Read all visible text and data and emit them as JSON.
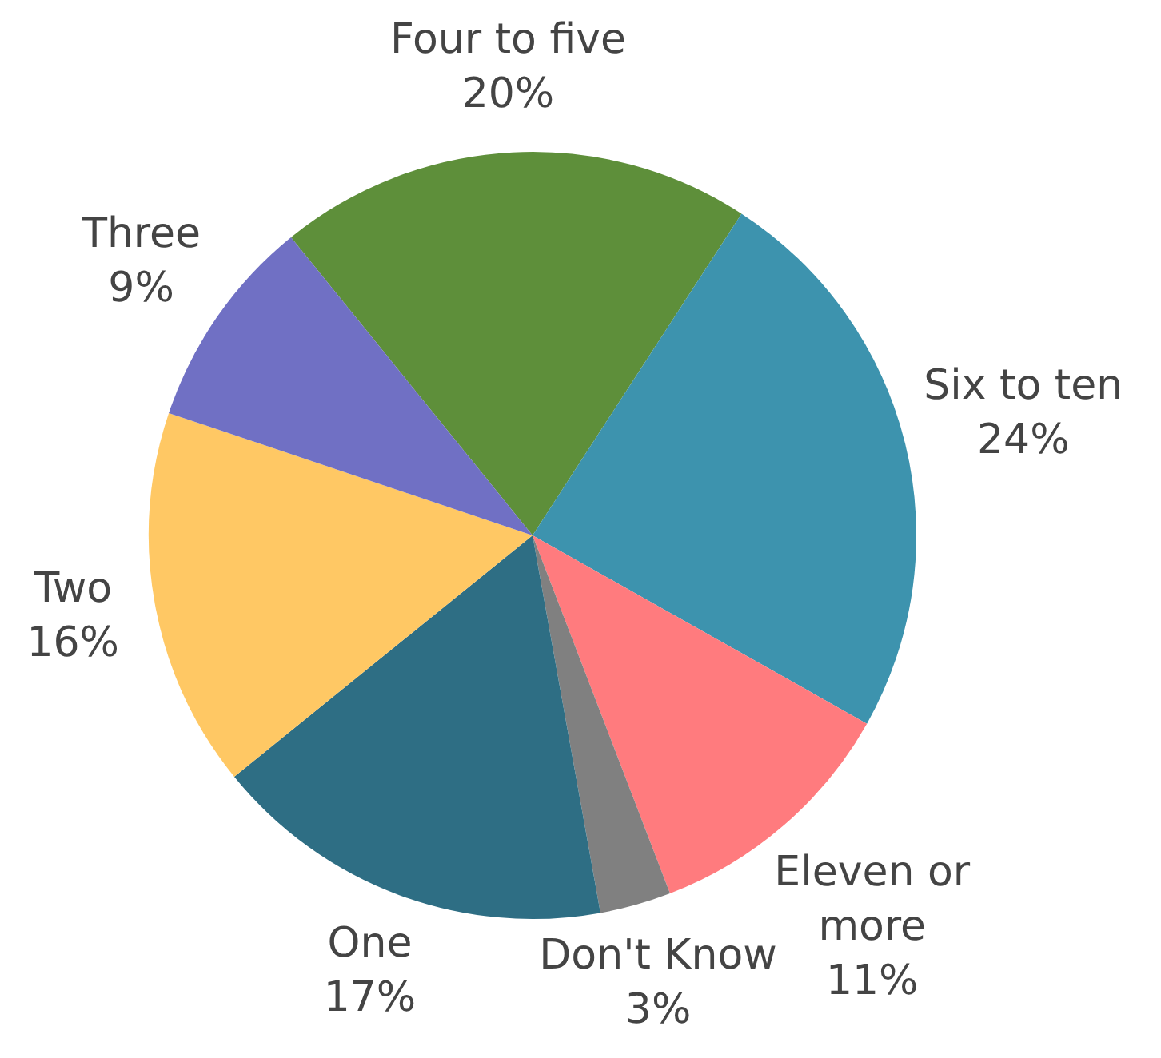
{
  "chart_data": {
    "type": "pie",
    "categories": [
      "Four to five",
      "Six to ten",
      "Eleven or more",
      "Don't Know",
      "One",
      "Two",
      "Three"
    ],
    "values": [
      20,
      24,
      11,
      3,
      17,
      16,
      9
    ],
    "colors": [
      "#5e8f3a",
      "#3d93ae",
      "#ff7b7e",
      "#808080",
      "#2e6e84",
      "#ffc864",
      "#7070c4"
    ],
    "value_labels": [
      "20%",
      "24%",
      "11%",
      "3%",
      "17%",
      "16%",
      "9%"
    ],
    "legend": false
  }
}
